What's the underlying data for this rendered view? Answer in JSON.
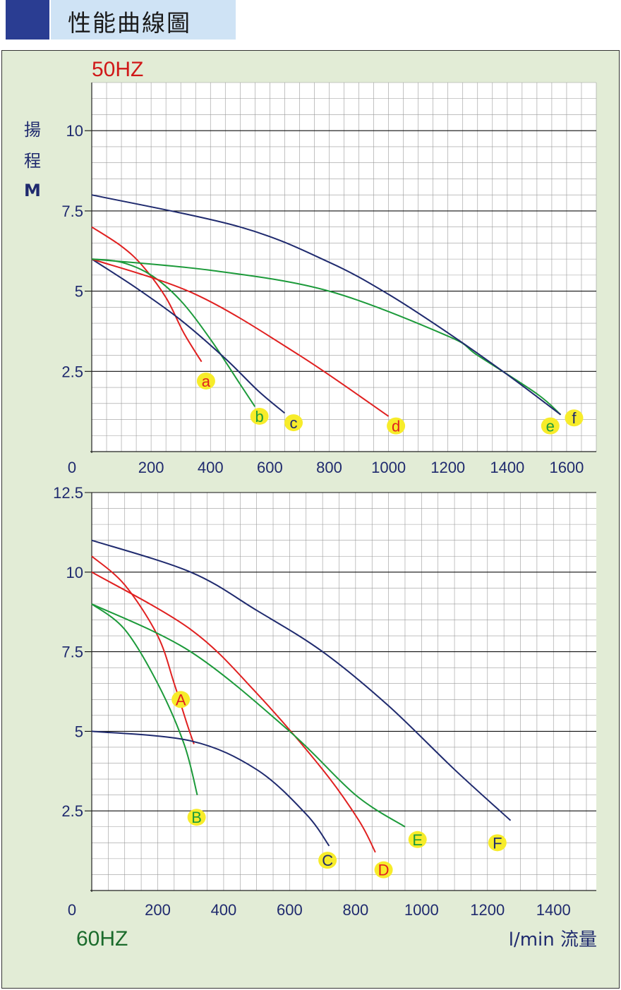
{
  "header": {
    "title": "性能曲線圖"
  },
  "colors": {
    "navy": "#1f2a6e",
    "red": "#e02020",
    "green": "#1c9a3a",
    "badge": "#f7ec2a",
    "axis_text": "#1f2a6e",
    "hz50": "#d01818",
    "hz60": "#1b6b2c"
  },
  "chart_data": [
    {
      "type": "line",
      "title": "50HZ",
      "ylabel": [
        "揚",
        "程",
        "M"
      ],
      "xlabel": "",
      "xlim": [
        0,
        1700
      ],
      "ylim": [
        0,
        11.5
      ],
      "x_ticks": [
        0,
        200,
        400,
        600,
        800,
        1000,
        1200,
        1400,
        1600
      ],
      "x_tick_labels": [
        "0",
        "200",
        "400",
        "600",
        "800",
        "1000",
        "1200",
        "1400",
        "1600"
      ],
      "y_ticks": [
        2.5,
        5,
        7.5,
        10
      ],
      "y_tick_labels": [
        "2.5",
        "5",
        "7.5",
        "10"
      ],
      "series": [
        {
          "name": "a",
          "color": "red",
          "label_color": "red",
          "x": [
            0,
            100,
            170,
            250,
            310,
            370
          ],
          "y": [
            7,
            6.4,
            5.8,
            4.8,
            3.7,
            2.8
          ],
          "label_at": [
            385,
            2.2
          ]
        },
        {
          "name": "b",
          "color": "green",
          "label_color": "green",
          "x": [
            0,
            100,
            200,
            300,
            400,
            500,
            550
          ],
          "y": [
            6,
            5.9,
            5.5,
            4.7,
            3.5,
            2.1,
            1.4
          ],
          "label_at": [
            565,
            1.1
          ]
        },
        {
          "name": "c",
          "color": "navy",
          "label_color": "navy",
          "x": [
            0,
            150,
            300,
            450,
            560,
            650
          ],
          "y": [
            6,
            5.1,
            4.1,
            2.9,
            1.9,
            1.2
          ],
          "label_at": [
            680,
            0.9
          ]
        },
        {
          "name": "d",
          "color": "red",
          "label_color": "red",
          "x": [
            0,
            350,
            700,
            1000
          ],
          "y": [
            6,
            4.9,
            3,
            1.1
          ],
          "label_at": [
            1025,
            0.8
          ]
        },
        {
          "name": "e",
          "color": "green",
          "label_color": "green",
          "x": [
            0,
            400,
            800,
            1200,
            1300,
            1500,
            1580
          ],
          "y": [
            6,
            5.65,
            5,
            3.6,
            3,
            1.8,
            1.15
          ],
          "label_at": [
            1545,
            0.8
          ]
        },
        {
          "name": "f",
          "color": "navy",
          "label_color": "navy",
          "x": [
            0,
            500,
            800,
            1000,
            1200,
            1400,
            1580
          ],
          "y": [
            8,
            7,
            5.9,
            4.9,
            3.7,
            2.4,
            1.15
          ],
          "label_at": [
            1625,
            1.05
          ]
        }
      ]
    },
    {
      "type": "line",
      "title": "60HZ",
      "xlabel": "l/min 流量",
      "ylabel": [],
      "xlim": [
        0,
        1530
      ],
      "ylim": [
        0,
        12.5
      ],
      "x_ticks": [
        0,
        200,
        400,
        600,
        800,
        1000,
        1200,
        1400
      ],
      "x_tick_labels": [
        "0",
        "200",
        "400",
        "600",
        "800",
        "1000",
        "1200",
        "1400"
      ],
      "y_ticks": [
        2.5,
        5,
        7.5,
        10,
        12.5
      ],
      "y_tick_labels": [
        "2.5",
        "5",
        "7.5",
        "10",
        "12.5"
      ],
      "series": [
        {
          "name": "A",
          "color": "red",
          "label_color": "red",
          "x": [
            0,
            100,
            200,
            250,
            290,
            310
          ],
          "y": [
            10.5,
            9.6,
            8,
            6.5,
            5.2,
            4.6
          ],
          "label_at": [
            270,
            6.0
          ]
        },
        {
          "name": "B",
          "color": "green",
          "label_color": "green",
          "x": [
            0,
            100,
            200,
            280,
            320
          ],
          "y": [
            9,
            8.2,
            6.5,
            4.6,
            3.0
          ],
          "label_at": [
            318,
            2.3
          ]
        },
        {
          "name": "C",
          "color": "navy",
          "label_color": "navy",
          "x": [
            0,
            300,
            500,
            650,
            720
          ],
          "y": [
            5,
            4.7,
            3.8,
            2.4,
            1.4
          ],
          "label_at": [
            715,
            0.95
          ]
        },
        {
          "name": "D",
          "color": "red",
          "label_color": "red",
          "x": [
            0,
            300,
            500,
            700,
            810,
            860
          ],
          "y": [
            10,
            8.2,
            6.2,
            3.8,
            2.2,
            1.2
          ],
          "label_at": [
            885,
            0.65
          ]
        },
        {
          "name": "E",
          "color": "green",
          "label_color": "green",
          "x": [
            0,
            300,
            600,
            800,
            950
          ],
          "y": [
            9,
            7.5,
            5,
            3,
            2.0
          ],
          "label_at": [
            988,
            1.6
          ]
        },
        {
          "name": "F",
          "color": "navy",
          "label_color": "navy",
          "x": [
            0,
            300,
            500,
            700,
            900,
            1100,
            1270
          ],
          "y": [
            11,
            10,
            8.8,
            7.5,
            5.8,
            3.8,
            2.2
          ],
          "label_at": [
            1230,
            1.5
          ]
        }
      ]
    }
  ]
}
